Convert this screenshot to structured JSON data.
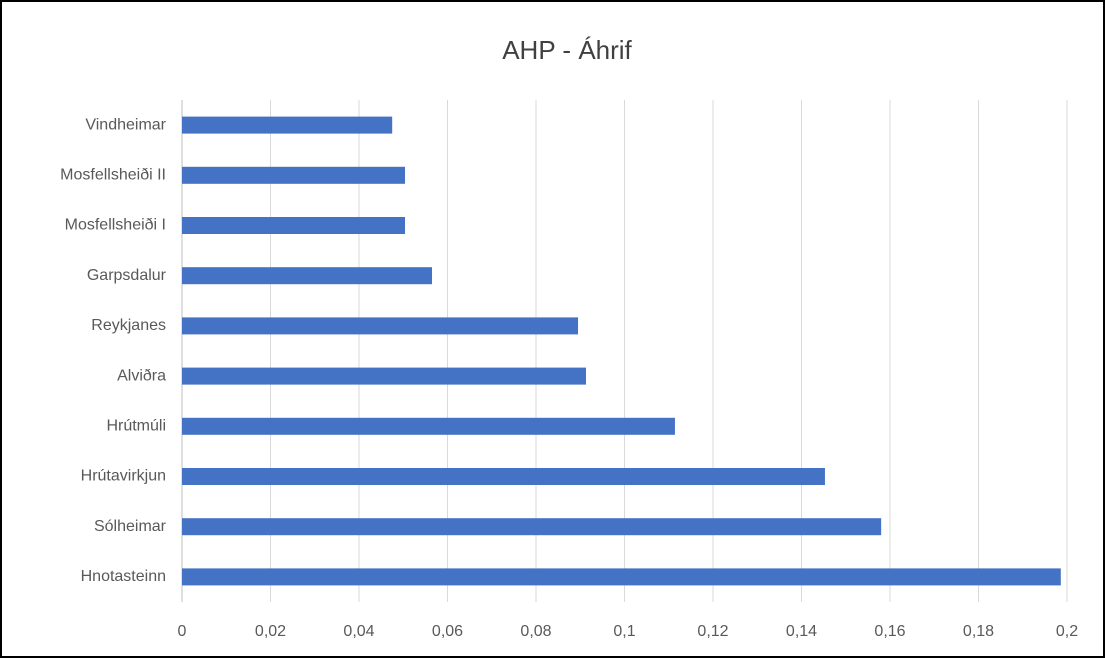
{
  "chart_data": {
    "type": "bar",
    "orientation": "horizontal",
    "title": "AHP - Áhrif",
    "categories": [
      "Vindheimar",
      "Mosfellsheiði II",
      "Mosfellsheiði I",
      "Garpsdalur",
      "Reykjanes",
      "Alviðra",
      "Hrútmúli",
      "Hrútavirkjun",
      "Sólheimar",
      "Hnotasteinn"
    ],
    "values": [
      0.0475,
      0.0504,
      0.0504,
      0.0565,
      0.0895,
      0.0913,
      0.1114,
      0.1453,
      0.158,
      0.1986
    ],
    "color": "#4472c4",
    "xlim": [
      0,
      0.2
    ],
    "xticks": [
      0,
      {
        "value": 0.02,
        "label": "0,02"
      },
      {
        "value": 0.04,
        "label": "0,04"
      },
      {
        "value": 0.06,
        "label": "0,06"
      },
      {
        "value": 0.08,
        "label": "0,08"
      },
      {
        "value": 0.1,
        "label": "0,1"
      },
      {
        "value": 0.12,
        "label": "0,12"
      },
      {
        "value": 0.14,
        "label": "0,14"
      },
      {
        "value": 0.16,
        "label": "0,16"
      },
      {
        "value": 0.18,
        "label": "0,18"
      },
      {
        "value": 0.2,
        "label": "0,2"
      }
    ],
    "grid": true
  }
}
